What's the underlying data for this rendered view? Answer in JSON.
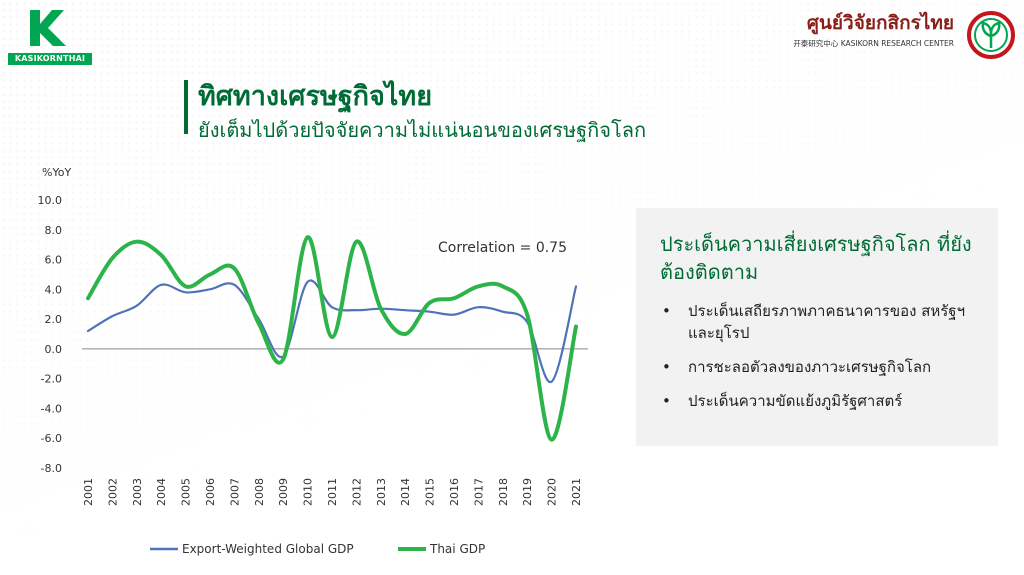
{
  "logo_left": {
    "text": "KASIKORNTHAI",
    "color": "#00a651"
  },
  "logo_right": {
    "name_th": "ศูนย์วิจัยกสิกรไทย",
    "name_en": "开泰研究中心 KASIKORN RESEARCH CENTER"
  },
  "title": {
    "line1": "ทิศทางเศรษฐกิจไทย",
    "line2": "ยังเต็มไปด้วยปัจจัยความไม่แน่นอนของเศรษฐกิจโลก",
    "color": "#006b35"
  },
  "chart_data": {
    "type": "line",
    "ylabel": "%YoY",
    "x": [
      "2001",
      "2002",
      "2003",
      "2004",
      "2005",
      "2006",
      "2007",
      "2008",
      "2009",
      "2010",
      "2011",
      "2012",
      "2013",
      "2014",
      "2015",
      "2016",
      "2017",
      "2018",
      "2019",
      "2020",
      "2021"
    ],
    "yticks": [
      "10.0",
      "8.0",
      "6.0",
      "4.0",
      "2.0",
      "0.0",
      "-2.0",
      "-4.0",
      "-6.0",
      "-8.0"
    ],
    "ylim": [
      -8,
      10
    ],
    "annotation": "Correlation = 0.75",
    "series": [
      {
        "name": "Export-Weighted Global GDP",
        "color": "#4f72b8",
        "values": [
          1.2,
          2.2,
          2.9,
          4.3,
          3.8,
          4.0,
          4.3,
          2.0,
          -0.5,
          4.5,
          2.8,
          2.6,
          2.7,
          2.6,
          2.5,
          2.3,
          2.8,
          2.5,
          1.8,
          -2.2,
          4.2
        ]
      },
      {
        "name": "Thai GDP",
        "color": "#2cb34a",
        "values": [
          3.4,
          6.1,
          7.2,
          6.3,
          4.2,
          5.0,
          5.4,
          1.7,
          -0.7,
          7.5,
          0.8,
          7.2,
          2.7,
          1.0,
          3.1,
          3.4,
          4.2,
          4.2,
          2.3,
          -6.1,
          1.5
        ]
      }
    ],
    "legend_position": "bottom",
    "grid": false
  },
  "risk_box": {
    "title": "ประเด็นความเสี่ยงเศรษฐกิจโลก ที่ยังต้องติดตาม",
    "bullet": "•",
    "items": [
      "ประเด็นเสถียรภาพภาคธนาคารของ สหรัฐฯ และยุโรป",
      "การชะลอตัวลงของภาวะเศรษฐกิจโลก",
      "ประเด็นความขัดแย้งภูมิรัฐศาสตร์"
    ]
  }
}
